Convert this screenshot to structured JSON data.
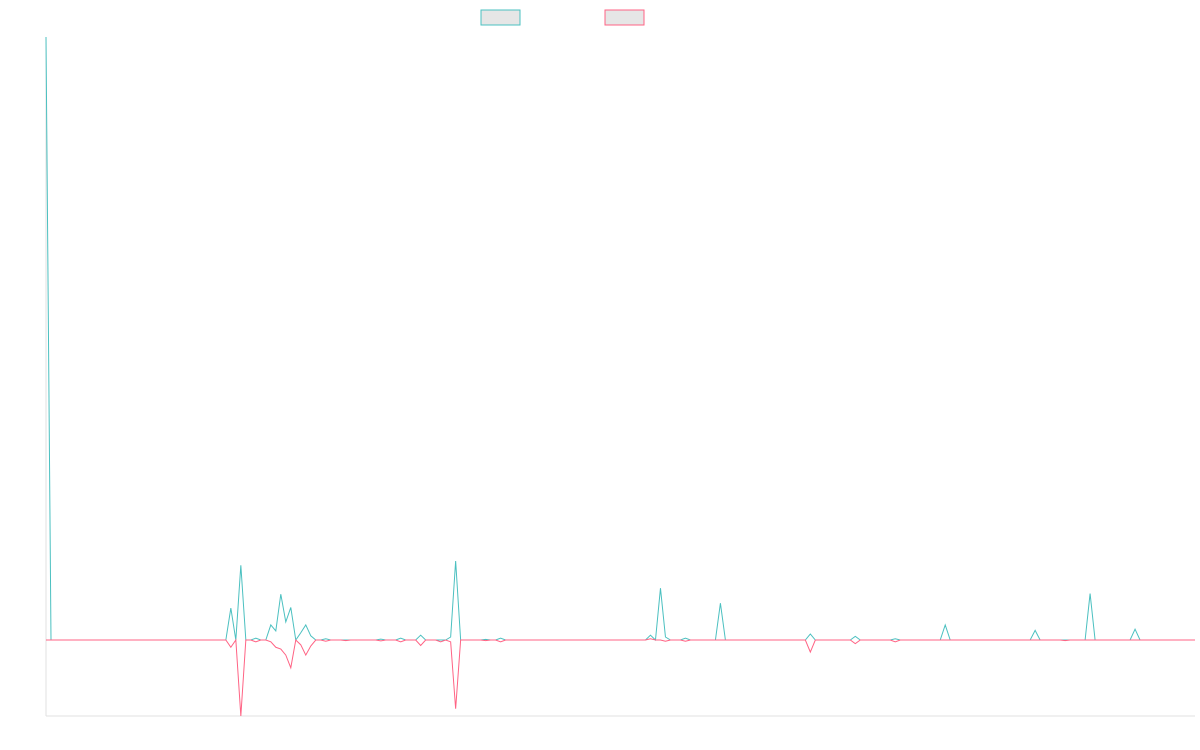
{
  "chart_data": {
    "type": "line",
    "ylim": [
      -12.6,
      100
    ],
    "series": [
      {
        "color": "#4bc0c0",
        "values": [
          100,
          0,
          0,
          0,
          0,
          0,
          0,
          0,
          0,
          0,
          0,
          0,
          0,
          0,
          0,
          0,
          0,
          0,
          0,
          0,
          0,
          0,
          0,
          0,
          0,
          0,
          0,
          0,
          0,
          0,
          0,
          0,
          0,
          0,
          0,
          0,
          0,
          5.3,
          0,
          12.4,
          0,
          0,
          0.3,
          0,
          0,
          2.5,
          1.5,
          7.6,
          3,
          5.4,
          0,
          1.2,
          2.5,
          0.7,
          0,
          0,
          0.2,
          0,
          0,
          0,
          0,
          0,
          0,
          0,
          0,
          0,
          0,
          0.15,
          0,
          0,
          0,
          0.3,
          0,
          0,
          0,
          0.8,
          0,
          0,
          0,
          0,
          0,
          0.5,
          13.1,
          0,
          0,
          0,
          0,
          0,
          0.1,
          0,
          0,
          0.3,
          0,
          0,
          0,
          0,
          0,
          0,
          0,
          0,
          0,
          0,
          0,
          0,
          0,
          0,
          0,
          0,
          0,
          0,
          0,
          0,
          0,
          0,
          0,
          0,
          0,
          0,
          0,
          0,
          0,
          0.8,
          0,
          8.6,
          0.5,
          0,
          0,
          0,
          0.3,
          0,
          0,
          0,
          0,
          0,
          0,
          6.1,
          0,
          0,
          0,
          0,
          0,
          0,
          0,
          0,
          0,
          0,
          0,
          0,
          0,
          0,
          0,
          0,
          0,
          1,
          0,
          0,
          0,
          0,
          0,
          0,
          0,
          0,
          0.6,
          0,
          0,
          0,
          0,
          0,
          0,
          0,
          0.2,
          0,
          0,
          0,
          0,
          0,
          0,
          0,
          0,
          0,
          2.5,
          0,
          0,
          0,
          0,
          0,
          0,
          0,
          0,
          0,
          0,
          0,
          0,
          0,
          0,
          0,
          0,
          0,
          1.6,
          0,
          0,
          0,
          0,
          0,
          0,
          0,
          0,
          0,
          0,
          7.7,
          0,
          0,
          0,
          0,
          0,
          0,
          0,
          0,
          1.8,
          0,
          0,
          0,
          0,
          0,
          0,
          0,
          0,
          0,
          0,
          0,
          0
        ]
      },
      {
        "color": "#ff6384",
        "values": [
          0,
          0,
          0,
          0,
          0,
          0,
          0,
          0,
          0,
          0,
          0,
          0,
          0,
          0,
          0,
          0,
          0,
          0,
          0,
          0,
          0,
          0,
          0,
          0,
          0,
          0,
          0,
          0,
          0,
          0,
          0,
          0,
          0,
          0,
          0,
          0,
          0,
          -1.2,
          0,
          -12.6,
          0,
          0,
          -0.3,
          0,
          0,
          -0.3,
          -1.2,
          -1.5,
          -2.5,
          -4.6,
          0,
          -0.8,
          -2.5,
          -1,
          0,
          0,
          -0.2,
          0,
          0,
          0,
          -0.1,
          0,
          0,
          0,
          0,
          0,
          0,
          -0.15,
          0,
          0,
          0,
          -0.3,
          0,
          0,
          0,
          -0.9,
          0,
          0,
          0,
          -0.3,
          0,
          -0.3,
          -11.4,
          0,
          0,
          0,
          0,
          0,
          -0.1,
          0,
          0,
          -0.3,
          0,
          0,
          0,
          0,
          0,
          0,
          0,
          0,
          0,
          0,
          0,
          0,
          0,
          0,
          0,
          0,
          0,
          0,
          0,
          0,
          0,
          0,
          0,
          0,
          0,
          0,
          0,
          0,
          0,
          0.2,
          0,
          0,
          -0.2,
          0,
          0,
          0,
          -0.2,
          0,
          0,
          0,
          0,
          0,
          0,
          0,
          0,
          0,
          0,
          0,
          0,
          0,
          0,
          0,
          0,
          0,
          0,
          0,
          0,
          0,
          0,
          0,
          0,
          -2,
          0,
          0,
          0,
          0,
          0,
          0,
          0,
          0,
          -0.6,
          0,
          0,
          0,
          0,
          0,
          0,
          0,
          -0.3,
          0,
          0,
          0,
          0,
          0,
          0,
          0,
          0,
          0,
          0,
          0,
          0,
          0,
          0,
          0,
          0,
          0,
          0,
          0,
          0,
          0,
          0,
          0,
          0,
          0,
          0,
          0,
          0,
          0,
          0,
          0,
          0,
          0,
          -0.1,
          0,
          0,
          0,
          0,
          0,
          0,
          0,
          0,
          0,
          0,
          0,
          0,
          0,
          0,
          0,
          0,
          0,
          0,
          0,
          0,
          0,
          0,
          0,
          0,
          0,
          0
        ]
      }
    ]
  }
}
